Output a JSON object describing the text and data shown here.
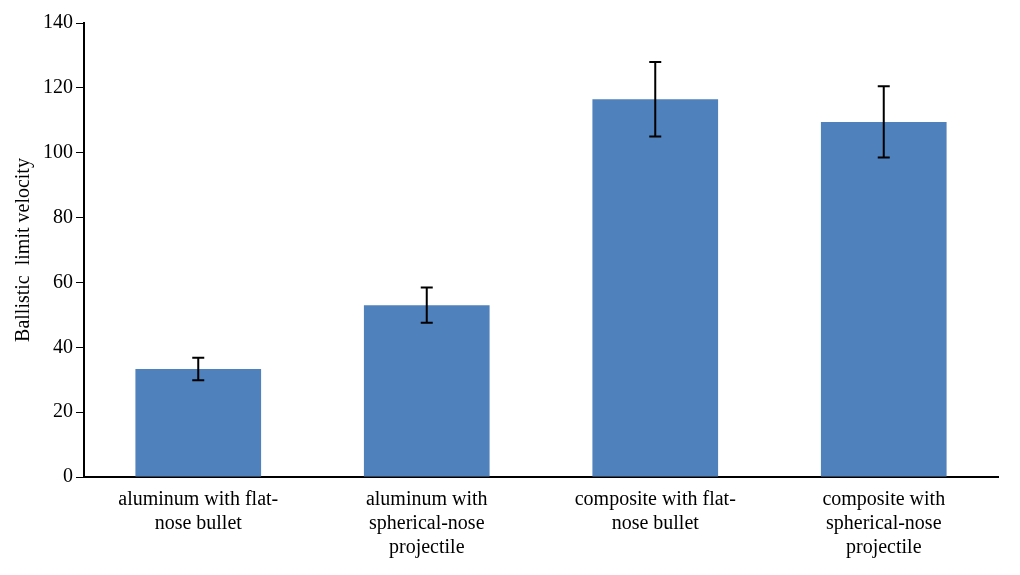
{
  "chart_data": {
    "type": "bar",
    "ylabel": "Ballistic  limit velocity",
    "categories": [
      "aluminum with flat-nose bullet",
      "aluminum with spherical-nose projectile",
      "composite with flat-nose bullet",
      "composite with spherical-nose projectile"
    ],
    "values": [
      33.3,
      53,
      116.5,
      109.5
    ],
    "color": "#4f81bd",
    "errors": [
      3.5,
      5.4,
      11.5,
      11
    ],
    "ylim": [
      0,
      140
    ],
    "yticks": [
      0,
      20,
      40,
      60,
      80,
      100,
      120,
      140
    ],
    "grid": false,
    "legend": false
  }
}
